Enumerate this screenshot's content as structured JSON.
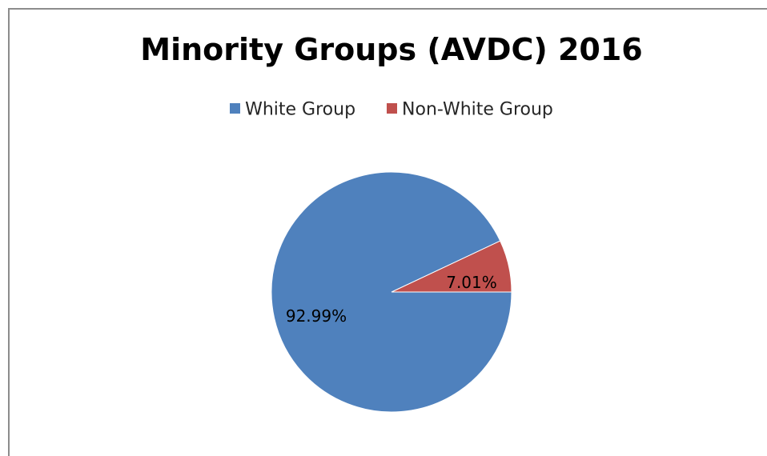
{
  "chart_data": {
    "type": "pie",
    "title": "Minority Groups (AVDC) 2016",
    "categories": [
      "White Group",
      "Non-White Group"
    ],
    "values": [
      92.99,
      7.01
    ],
    "value_labels": [
      "92.99%",
      "7.01%"
    ],
    "colors": [
      "#4f81bd",
      "#c0504d"
    ],
    "legend_position": "top"
  }
}
